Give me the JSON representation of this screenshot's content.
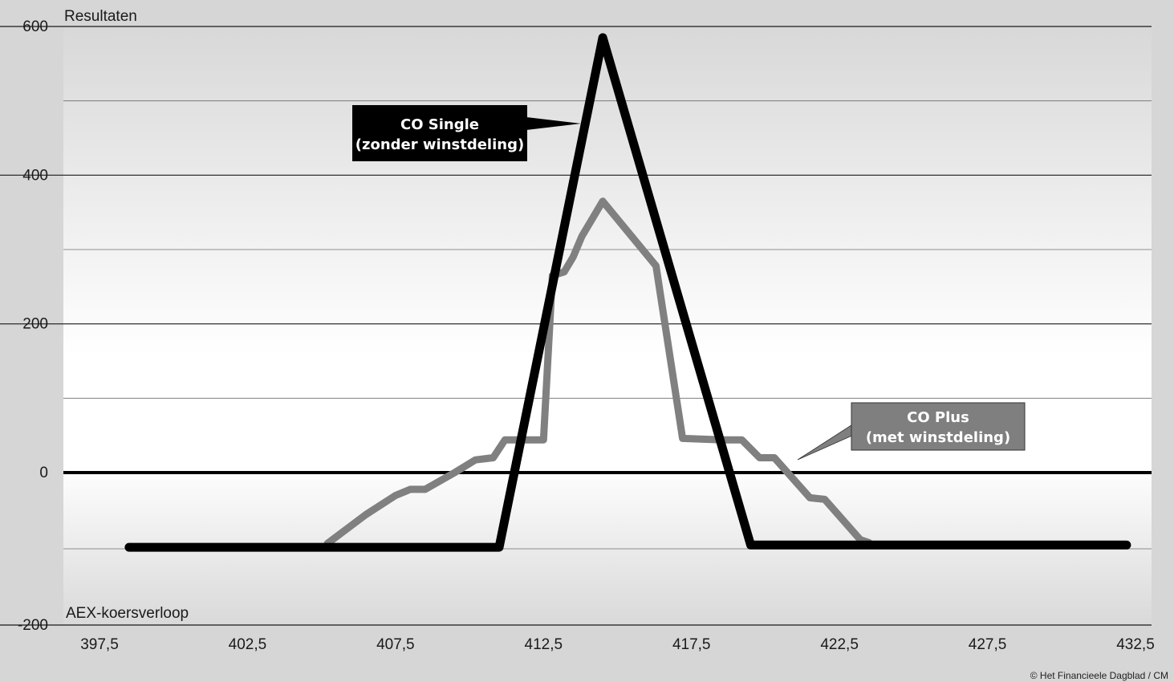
{
  "chart_data": {
    "type": "line",
    "ylabel": "Resultaten",
    "xlabel": "AEX-koersverloop",
    "xlim": [
      397.5,
      432.5
    ],
    "ylim": [
      -200,
      600
    ],
    "x_ticks": [
      "397,5",
      "402,5",
      "407,5",
      "412,5",
      "417,5",
      "422,5",
      "427,5",
      "432,5"
    ],
    "y_ticks": [
      "-200",
      "0",
      "200",
      "400",
      "600"
    ],
    "grid": true,
    "series": [
      {
        "name": "CO Single (zonder winstdeling)",
        "label_line1": "CO Single",
        "label_line2": "(zonder winstdeling)",
        "color": "#000000",
        "points": [
          [
            398.5,
            -98
          ],
          [
            411,
            -98
          ],
          [
            414.5,
            585
          ],
          [
            419.5,
            -95
          ],
          [
            432.2,
            -95
          ]
        ]
      },
      {
        "name": "CO Plus (met winstdeling)",
        "label_line1": "CO Plus",
        "label_line2": "(met winstdeling)",
        "color": "#808080",
        "points": [
          [
            405.2,
            -93
          ],
          [
            406.5,
            -55
          ],
          [
            407.5,
            -30
          ],
          [
            408,
            -22
          ],
          [
            408.5,
            -22
          ],
          [
            409.5,
            0
          ],
          [
            410.2,
            17
          ],
          [
            410.8,
            20
          ],
          [
            411.2,
            44
          ],
          [
            412.2,
            44
          ],
          [
            412.5,
            44
          ],
          [
            412.8,
            265
          ],
          [
            413.2,
            270
          ],
          [
            413.5,
            290
          ],
          [
            413.8,
            318
          ],
          [
            414.5,
            365
          ],
          [
            416.3,
            278
          ],
          [
            417.2,
            46
          ],
          [
            418.5,
            44
          ],
          [
            419.2,
            44
          ],
          [
            419.8,
            20
          ],
          [
            420.3,
            20
          ],
          [
            421.5,
            -33
          ],
          [
            422.0,
            -35
          ],
          [
            423.2,
            -88
          ],
          [
            423.5,
            -92
          ]
        ]
      }
    ]
  },
  "credit": "© Het Financieele Dagblad / CM",
  "colors": {
    "background": "#d6d6d6",
    "plot_top": "#d8d8d8",
    "plot_mid": "#ffffff",
    "plot_bottom": "#d8d8d8",
    "single_box": "#000000",
    "plus_box": "#7f7f7f"
  }
}
